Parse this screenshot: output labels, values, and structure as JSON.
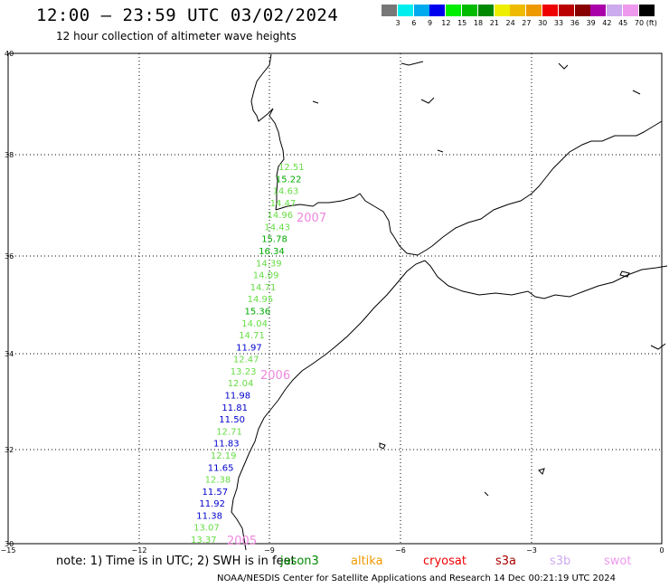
{
  "header": {
    "title": "12:00 — 23:59 UTC 03/02/2024",
    "subtitle": "12 hour collection of altimeter wave heights"
  },
  "legend": {
    "colors": [
      "#777777",
      "#00eeee",
      "#00aaee",
      "#0000ee",
      "#00ee00",
      "#00bb00",
      "#008800",
      "#eeee00",
      "#eebb00",
      "#ee9900",
      "#ee0000",
      "#bb0000",
      "#880000",
      "#aa00aa",
      "#ccaaee",
      "#ee99ee",
      "#000000"
    ],
    "labels": [
      "3",
      "6",
      "9",
      "12",
      "15",
      "18",
      "21",
      "24",
      "27",
      "30",
      "33",
      "36",
      "39",
      "42",
      "45",
      "70"
    ],
    "unit": "(ft)"
  },
  "axes": {
    "lon_ticks": [
      "−15",
      "−12",
      "−9",
      "−6",
      "−3",
      "0"
    ],
    "lat_ticks": [
      "40",
      "38",
      "36",
      "34",
      "32",
      "30"
    ]
  },
  "measurements": [
    {
      "value": "12.51",
      "color": "#66dd44"
    },
    {
      "value": "15.22",
      "color": "#00aa00"
    },
    {
      "value": "14.63",
      "color": "#66dd44"
    },
    {
      "value": "14.47",
      "color": "#66dd44"
    },
    {
      "value": "14.96",
      "color": "#66dd44"
    },
    {
      "value": "14.43",
      "color": "#66dd44"
    },
    {
      "value": "15.78",
      "color": "#00aa00"
    },
    {
      "value": "16.34",
      "color": "#00aa00"
    },
    {
      "value": "14.39",
      "color": "#66dd44"
    },
    {
      "value": "14.09",
      "color": "#66dd44"
    },
    {
      "value": "14.71",
      "color": "#66dd44"
    },
    {
      "value": "14.95",
      "color": "#66dd44"
    },
    {
      "value": "15.36",
      "color": "#00aa00"
    },
    {
      "value": "14.04",
      "color": "#66dd44"
    },
    {
      "value": "14.71",
      "color": "#66dd44"
    },
    {
      "value": "11.97",
      "color": "#0000cc"
    },
    {
      "value": "12.47",
      "color": "#66dd44"
    },
    {
      "value": "13.23",
      "color": "#66dd44"
    },
    {
      "value": "12.04",
      "color": "#66dd44"
    },
    {
      "value": "11.98",
      "color": "#0000cc"
    },
    {
      "value": "11.81",
      "color": "#0000cc"
    },
    {
      "value": "11.50",
      "color": "#0000cc"
    },
    {
      "value": "12.71",
      "color": "#66dd44"
    },
    {
      "value": "11.83",
      "color": "#0000cc"
    },
    {
      "value": "12.19",
      "color": "#66dd44"
    },
    {
      "value": "11.65",
      "color": "#0000cc"
    },
    {
      "value": "12.38",
      "color": "#66dd44"
    },
    {
      "value": "11.57",
      "color": "#0000cc"
    },
    {
      "value": "11.92",
      "color": "#0000cc"
    },
    {
      "value": "11.38",
      "color": "#0000cc"
    },
    {
      "value": "13.07",
      "color": "#66dd44"
    },
    {
      "value": "13.37",
      "color": "#66dd44"
    }
  ],
  "pass_labels": [
    "2007",
    "2006",
    "2005"
  ],
  "footer": {
    "note": "note: 1) Time is in UTC; 2) SWH is in feet",
    "satellites": [
      {
        "name": "jason3",
        "color": "#008800"
      },
      {
        "name": "altika",
        "color": "#ee9900"
      },
      {
        "name": "cryosat",
        "color": "#ee0000"
      },
      {
        "name": "s3a",
        "color": "#aa0000"
      },
      {
        "name": "s3b",
        "color": "#ccaaee"
      },
      {
        "name": "swot",
        "color": "#ee99ee"
      }
    ],
    "credit": "NOAA/NESDIS Center for Satellite Applications and Research   14 Dec 00:21:19 UTC 2024"
  }
}
